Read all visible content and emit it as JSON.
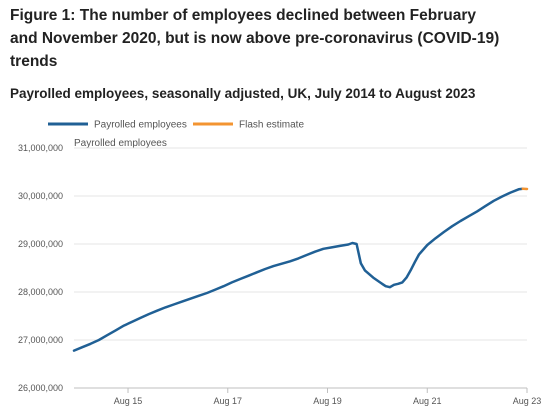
{
  "figure": {
    "title_line1": "Figure 1: The number of employees declined between February",
    "title_line2": "and November 2020, but is now above pre-coronavirus (COVID-19)",
    "title_line3": "trends",
    "subtitle": "Payrolled employees, seasonally adjusted, UK, July 2014 to August 2023"
  },
  "chart_data": {
    "type": "line",
    "title": "Figure 1: The number of employees declined between February and November 2020, but is now above pre-coronavirus (COVID-19) trends",
    "subtitle": "Payrolled employees, seasonally adjusted, UK, July 2014 to August 2023",
    "ylabel": "Payrolled employees",
    "xlabel": "",
    "ylim": [
      26000000,
      31000000
    ],
    "yticks": [
      26000000,
      27000000,
      28000000,
      29000000,
      30000000,
      31000000
    ],
    "ytick_labels": [
      "26,000,000",
      "27,000,000",
      "28,000,000",
      "29,000,000",
      "30,000,000",
      "31,000,000"
    ],
    "xticks": [
      "2015-08",
      "2017-08",
      "2019-08",
      "2021-08",
      "2023-08"
    ],
    "xtick_labels": [
      "Aug 15",
      "Aug 17",
      "Aug 19",
      "Aug 21",
      "Aug 23"
    ],
    "xlim": [
      "2014-07",
      "2023-08"
    ],
    "grid": true,
    "legend_position": "top-left",
    "series": [
      {
        "name": "Payrolled employees",
        "color": "#206095",
        "points": [
          [
            "2014-07",
            26780000
          ],
          [
            "2014-09",
            26850000
          ],
          [
            "2014-11",
            26920000
          ],
          [
            "2015-01",
            27000000
          ],
          [
            "2015-03",
            27100000
          ],
          [
            "2015-05",
            27200000
          ],
          [
            "2015-07",
            27300000
          ],
          [
            "2015-09",
            27380000
          ],
          [
            "2015-11",
            27460000
          ],
          [
            "2016-01",
            27540000
          ],
          [
            "2016-03",
            27610000
          ],
          [
            "2016-05",
            27680000
          ],
          [
            "2016-07",
            27740000
          ],
          [
            "2016-09",
            27800000
          ],
          [
            "2016-11",
            27860000
          ],
          [
            "2017-01",
            27920000
          ],
          [
            "2017-03",
            27980000
          ],
          [
            "2017-05",
            28050000
          ],
          [
            "2017-07",
            28120000
          ],
          [
            "2017-09",
            28200000
          ],
          [
            "2017-11",
            28270000
          ],
          [
            "2018-01",
            28340000
          ],
          [
            "2018-03",
            28410000
          ],
          [
            "2018-05",
            28480000
          ],
          [
            "2018-07",
            28540000
          ],
          [
            "2018-09",
            28590000
          ],
          [
            "2018-11",
            28640000
          ],
          [
            "2019-01",
            28700000
          ],
          [
            "2019-03",
            28770000
          ],
          [
            "2019-05",
            28840000
          ],
          [
            "2019-07",
            28900000
          ],
          [
            "2019-09",
            28930000
          ],
          [
            "2019-11",
            28960000
          ],
          [
            "2020-01",
            28990000
          ],
          [
            "2020-02",
            29020000
          ],
          [
            "2020-03",
            29000000
          ],
          [
            "2020-04",
            28600000
          ],
          [
            "2020-05",
            28450000
          ],
          [
            "2020-07",
            28300000
          ],
          [
            "2020-09",
            28180000
          ],
          [
            "2020-10",
            28120000
          ],
          [
            "2020-11",
            28100000
          ],
          [
            "2020-12",
            28150000
          ],
          [
            "2021-01",
            28170000
          ],
          [
            "2021-02",
            28200000
          ],
          [
            "2021-03",
            28300000
          ],
          [
            "2021-04",
            28450000
          ],
          [
            "2021-05",
            28620000
          ],
          [
            "2021-06",
            28780000
          ],
          [
            "2021-08",
            28980000
          ],
          [
            "2021-10",
            29120000
          ],
          [
            "2021-12",
            29250000
          ],
          [
            "2022-02",
            29370000
          ],
          [
            "2022-04",
            29480000
          ],
          [
            "2022-06",
            29580000
          ],
          [
            "2022-08",
            29680000
          ],
          [
            "2022-10",
            29790000
          ],
          [
            "2022-12",
            29900000
          ],
          [
            "2023-02",
            29990000
          ],
          [
            "2023-04",
            30070000
          ],
          [
            "2023-06",
            30140000
          ],
          [
            "2023-07",
            30150000
          ]
        ]
      },
      {
        "name": "Flash estimate",
        "color": "#f39431",
        "points": [
          [
            "2023-07",
            30150000
          ],
          [
            "2023-08",
            30145000
          ]
        ]
      }
    ]
  }
}
